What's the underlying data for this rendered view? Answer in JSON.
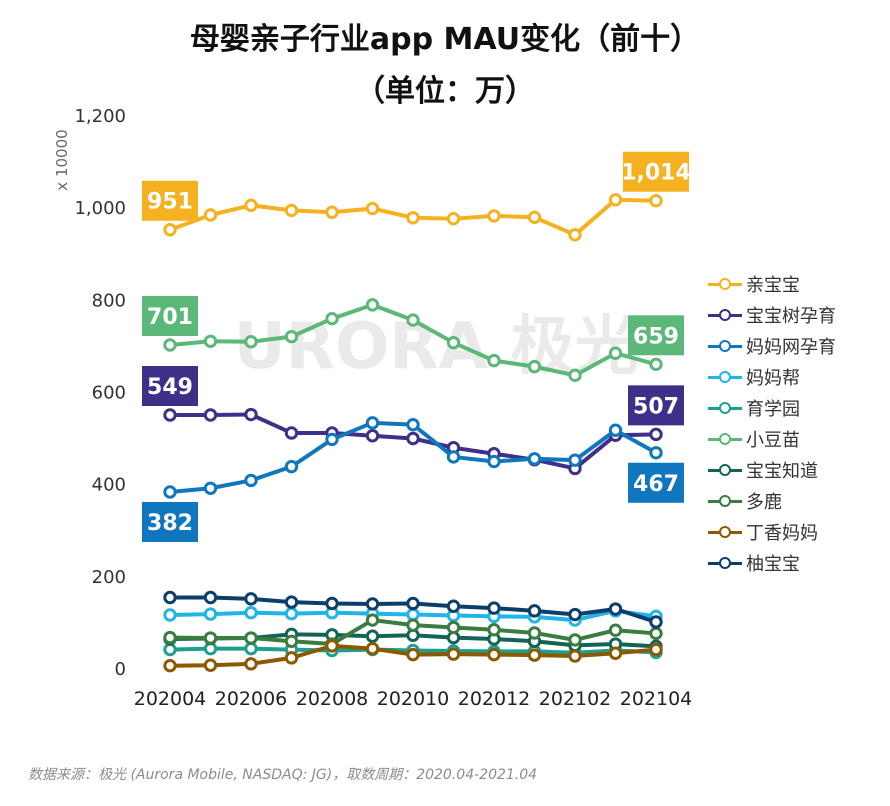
{
  "title_line1": "母婴亲子行业app MAU变化（前十）",
  "title_line2": "（单位：万）",
  "footer": "数据来源：极光 (Aurora Mobile, NASDAQ: JG)，取数周期：2020.04-2021.04",
  "watermark": "URORA 极光",
  "chart_data": {
    "type": "line",
    "title": "母婴亲子行业app MAU变化（前十）",
    "subtitle": "（单位：万）",
    "ylabel": "x 10000",
    "ylim": [
      0,
      1200
    ],
    "yticks": [
      0,
      200,
      400,
      600,
      800,
      1000,
      1200
    ],
    "ytick_labels": [
      "0",
      "200",
      "400",
      "600",
      "800",
      "1,000",
      "1,200"
    ],
    "grid": false,
    "legend_position": "right",
    "x": [
      "202004",
      "202005",
      "202006",
      "202007",
      "202008",
      "202009",
      "202010",
      "202011",
      "202012",
      "202101",
      "202102",
      "202103",
      "202104"
    ],
    "xtick_labels": [
      "202004",
      "202006",
      "202008",
      "202010",
      "202012",
      "202102",
      "202104"
    ],
    "series": [
      {
        "name": "亲宝宝",
        "color": "#F5B120",
        "values": [
          951,
          983,
          1004,
          993,
          989,
          997,
          977,
          975,
          981,
          978,
          940,
          1016,
          1014
        ]
      },
      {
        "name": "宝宝树孕育",
        "color": "#3D3089",
        "values": [
          549,
          549,
          550,
          510,
          510,
          504,
          498,
          478,
          465,
          452,
          433,
          505,
          507
        ]
      },
      {
        "name": "妈妈网孕育",
        "color": "#1076BE",
        "values": [
          382,
          390,
          407,
          437,
          496,
          532,
          528,
          458,
          448,
          454,
          451,
          516,
          467
        ]
      },
      {
        "name": "妈妈帮",
        "color": "#20B5E6",
        "values": [
          115,
          117,
          120,
          118,
          120,
          118,
          116,
          114,
          112,
          111,
          104,
          124,
          112
        ]
      },
      {
        "name": "育学园",
        "color": "#1D9E8F",
        "values": [
          40,
          42,
          42,
          40,
          38,
          40,
          38,
          37,
          36,
          36,
          33,
          38,
          34
        ]
      },
      {
        "name": "小豆苗",
        "color": "#5CB878",
        "values": [
          701,
          709,
          708,
          719,
          758,
          788,
          755,
          706,
          667,
          654,
          635,
          683,
          659
        ]
      },
      {
        "name": "宝宝知道",
        "color": "#136356",
        "values": [
          63,
          64,
          65,
          73,
          72,
          69,
          71,
          66,
          63,
          58,
          49,
          52,
          47
        ]
      },
      {
        "name": "多鹿",
        "color": "#3A7D3F",
        "values": [
          66,
          65,
          65,
          58,
          52,
          104,
          93,
          88,
          83,
          76,
          61,
          82,
          75
        ]
      },
      {
        "name": "丁香妈妈",
        "color": "#8B5A00",
        "values": [
          5,
          6,
          9,
          22,
          48,
          42,
          29,
          30,
          29,
          28,
          26,
          32,
          40
        ]
      },
      {
        "name": "柚宝宝",
        "color": "#0C3E6B",
        "values": [
          153,
          153,
          150,
          143,
          140,
          139,
          140,
          134,
          130,
          124,
          116,
          128,
          100
        ]
      }
    ],
    "data_labels": [
      {
        "series": 0,
        "index": 0,
        "text": "951"
      },
      {
        "series": 0,
        "index": 12,
        "text": "1,014"
      },
      {
        "series": 5,
        "index": 0,
        "text": "701"
      },
      {
        "series": 5,
        "index": 12,
        "text": "659"
      },
      {
        "series": 1,
        "index": 0,
        "text": "549"
      },
      {
        "series": 1,
        "index": 12,
        "text": "507"
      },
      {
        "series": 2,
        "index": 0,
        "text": "382"
      },
      {
        "series": 2,
        "index": 12,
        "text": "467"
      }
    ]
  }
}
